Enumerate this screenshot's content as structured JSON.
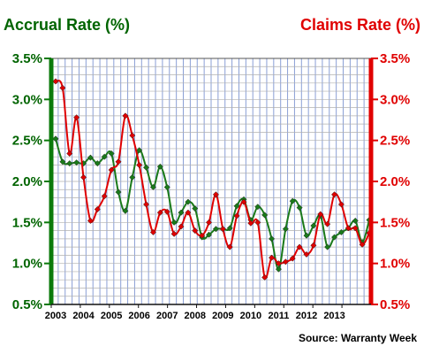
{
  "chart_data": {
    "type": "line",
    "title_left": "Accrual Rate (%)",
    "title_right": "Claims Rate (%)",
    "source": "Source: Warranty Week",
    "x_tick_labels": [
      "2003",
      "2004",
      "2005",
      "2006",
      "2007",
      "2008",
      "2009",
      "2010",
      "2011",
      "2012",
      "2013"
    ],
    "y_tick_labels": [
      "3.5%",
      "3.0%",
      "2.5%",
      "2.0%",
      "1.5%",
      "1.0%",
      "0.5%"
    ],
    "ylim": [
      0.5,
      3.5
    ],
    "x_start": "2003Q1",
    "x_step": "quarter",
    "grid": true,
    "colors": {
      "accrual": "#1a7a1a",
      "claims": "#e00000",
      "grid_vertical": "#8a9fd6",
      "grid_horizontal": "#b0b0b0",
      "axis_left": "#0b7a0b",
      "axis_right": "#e00000"
    },
    "series": [
      {
        "key": "accrual",
        "values": [
          2.52,
          2.24,
          2.22,
          2.23,
          2.22,
          2.29,
          2.22,
          2.3,
          2.34,
          1.87,
          1.64,
          2.05,
          2.38,
          2.17,
          1.93,
          2.18,
          1.93,
          1.5,
          1.62,
          1.75,
          1.67,
          1.32,
          1.35,
          1.42,
          1.42,
          1.43,
          1.7,
          1.78,
          1.53,
          1.69,
          1.59,
          1.3,
          0.93,
          1.42,
          1.76,
          1.68,
          1.34,
          1.46,
          1.58,
          1.2,
          1.32,
          1.38,
          1.43,
          1.52,
          1.26,
          1.53
        ]
      },
      {
        "key": "claims",
        "values": [
          3.22,
          3.14,
          2.34,
          2.78,
          2.05,
          1.52,
          1.66,
          1.82,
          2.14,
          2.24,
          2.8,
          2.56,
          2.2,
          1.72,
          1.38,
          1.62,
          1.63,
          1.36,
          1.45,
          1.62,
          1.4,
          1.34,
          1.5,
          1.84,
          1.42,
          1.2,
          1.58,
          1.75,
          1.49,
          1.5,
          0.83,
          1.07,
          1.0,
          1.02,
          1.06,
          1.2,
          1.11,
          1.22,
          1.6,
          1.48,
          1.84,
          1.72,
          1.43,
          1.43,
          1.23,
          1.37
        ]
      }
    ]
  }
}
